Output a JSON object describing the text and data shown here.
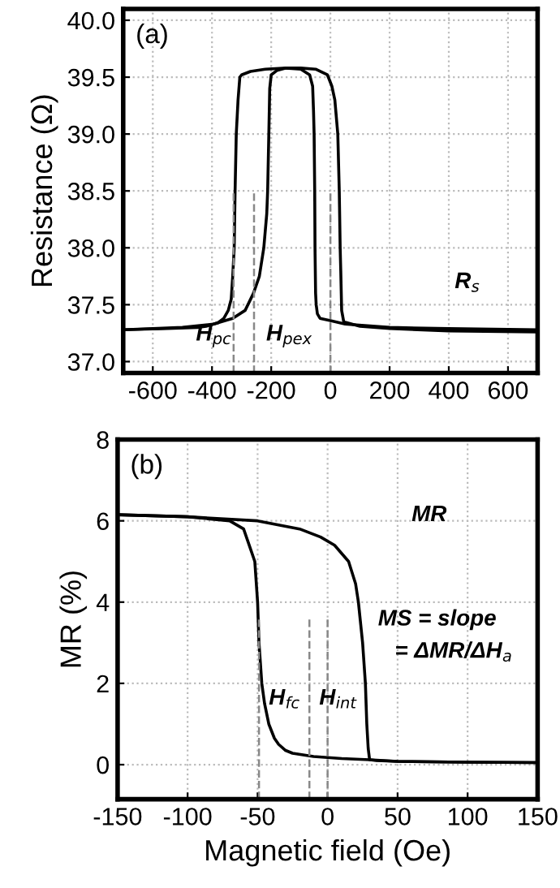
{
  "chart_data": [
    {
      "type": "line",
      "ylabel": "Resistance (Ω)",
      "xlim": [
        -700,
        700
      ],
      "ylim": [
        36.9,
        40.1
      ],
      "xticks": [
        -600,
        -400,
        -200,
        0,
        200,
        400,
        600
      ],
      "yticks": [
        {
          "value": 37.0,
          "label": "37.0"
        },
        37.5,
        {
          "value": 38.0,
          "label": "38.0"
        },
        38.5,
        {
          "value": 39.0,
          "label": "39.0"
        },
        39.5,
        {
          "value": 40.0,
          "label": "40.0"
        }
      ],
      "grid": true,
      "line_style": "solid",
      "marker": "none",
      "series": [
        {
          "color": "#000000",
          "x": [
            700,
            400,
            200,
            100,
            45,
            38,
            35,
            33,
            30,
            25,
            15,
            5,
            -10,
            -50,
            -100,
            -150,
            -220,
            -270,
            -300,
            -306,
            -312,
            -318,
            -322,
            -325,
            -330,
            -335,
            -345,
            -360,
            -380,
            -420,
            -450,
            -550,
            -700
          ],
          "values": [
            37.26,
            37.27,
            37.29,
            37.31,
            37.35,
            37.45,
            37.8,
            38.0,
            38.5,
            39.0,
            39.3,
            39.42,
            39.52,
            39.57,
            39.58,
            39.58,
            39.57,
            39.55,
            39.52,
            39.5,
            39.3,
            39.0,
            38.5,
            38.0,
            37.75,
            37.55,
            37.45,
            37.38,
            37.34,
            37.31,
            37.3,
            37.29,
            37.28
          ]
        },
        {
          "color": "#000000",
          "x": [
            -700,
            -500,
            -395,
            -330,
            -288,
            -260,
            -240,
            -225,
            -215,
            -212,
            -208,
            -205,
            -200,
            -180,
            -150,
            -100,
            -70,
            -60,
            -57,
            -55,
            -53,
            -52,
            -50,
            -48,
            -44,
            -35,
            0,
            50,
            200,
            400,
            700
          ],
          "values": [
            37.28,
            37.3,
            37.33,
            37.38,
            37.45,
            37.6,
            37.75,
            38.0,
            38.3,
            38.5,
            39.0,
            39.4,
            39.52,
            39.56,
            39.58,
            39.57,
            39.52,
            39.42,
            39.2,
            39.0,
            38.5,
            38.0,
            37.6,
            37.5,
            37.42,
            37.38,
            37.36,
            37.33,
            37.3,
            37.29,
            37.28
          ]
        }
      ],
      "ref_lines": [
        {
          "axis": "x",
          "value": -327,
          "line_style": "dashed",
          "color": "#888888"
        },
        {
          "axis": "x",
          "value": -258,
          "line_style": "dashed",
          "color": "#888888"
        },
        {
          "axis": "x",
          "value": 0,
          "line_style": "dashed",
          "color": "#888888"
        }
      ],
      "annotations": [
        "(a)",
        "H$_{pc}$",
        "H$_{pex}$",
        "R$_{s}$"
      ]
    },
    {
      "type": "line",
      "xlabel": "Magnetic field (Oe)",
      "ylabel": "MR (%)",
      "xlim": [
        -150,
        150
      ],
      "ylim": [
        -0.85,
        8
      ],
      "xticks": [
        -150,
        -100,
        -50,
        0,
        50,
        100,
        150
      ],
      "yticks": [
        0,
        2,
        4,
        6,
        8
      ],
      "grid": true,
      "line_style": "solid",
      "marker": "none",
      "series": [
        {
          "color": "#000000",
          "x": [
            150,
            100,
            50,
            35,
            30,
            29,
            28,
            27,
            25,
            22,
            20,
            15,
            5,
            -5,
            -20,
            -50,
            -100,
            -150
          ],
          "values": [
            0.05,
            0.06,
            0.08,
            0.1,
            0.12,
            0.4,
            1.0,
            2.0,
            3.0,
            4.0,
            4.45,
            5.0,
            5.4,
            5.6,
            5.8,
            6.0,
            6.1,
            6.15
          ]
        },
        {
          "color": "#000000",
          "x": [
            -150,
            -100,
            -70,
            -60,
            -55,
            -52,
            -50,
            -49,
            -47,
            -45,
            -42,
            -38,
            -35,
            -30,
            -25,
            -10,
            10,
            30,
            50,
            100,
            150
          ],
          "values": [
            6.15,
            6.1,
            6.0,
            5.8,
            5.3,
            5.0,
            4.0,
            3.0,
            2.0,
            1.5,
            1.0,
            0.65,
            0.5,
            0.35,
            0.28,
            0.2,
            0.15,
            0.12,
            0.08,
            0.06,
            0.05
          ]
        }
      ],
      "ref_lines": [
        {
          "axis": "x",
          "value": -49,
          "line_style": "dashed",
          "color": "#888888"
        },
        {
          "axis": "x",
          "value": -13,
          "line_style": "dashed",
          "color": "#888888"
        },
        {
          "axis": "x",
          "value": 0,
          "line_style": "dashed",
          "color": "#888888"
        }
      ],
      "annotations": [
        "(b)",
        "MR",
        "MS = slope",
        "= ΔMR/ΔH$_{a}$",
        "H$_{fc}$",
        "H$_{int}$"
      ]
    }
  ]
}
